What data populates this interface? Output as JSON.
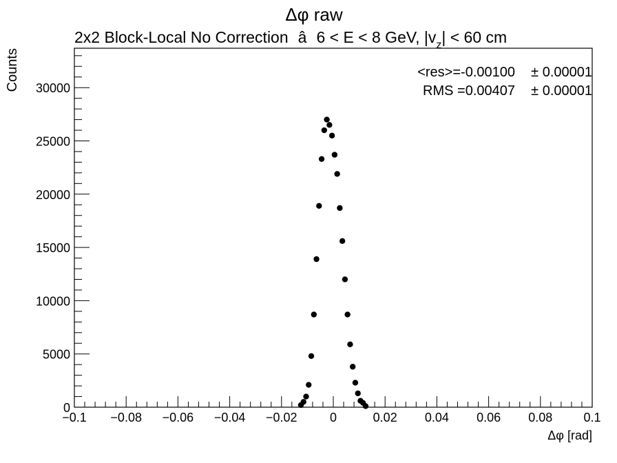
{
  "chart_data": {
    "type": "scatter",
    "title": "Δφ raw",
    "subtitle_parts": [
      "2x2 Block-Local No Correction",
      "â",
      "6 < E < 8 GeV, |v",
      "z",
      "| < 60 cm"
    ],
    "xlabel": "Δφ  [rad]",
    "ylabel": "Counts",
    "xlim": [
      -0.1,
      0.1
    ],
    "ylim": [
      0,
      33700
    ],
    "x_tick_labels": [
      "−0.1",
      "−0.08",
      "−0.06",
      "−0.04",
      "−0.02",
      "0",
      "0.02",
      "0.04",
      "0.06",
      "0.08",
      "0.1"
    ],
    "y_tick_labels": [
      "0",
      "5000",
      "10000",
      "15000",
      "20000",
      "25000",
      "30000"
    ],
    "grid": false,
    "stats": {
      "res_label": "<res>=-0.00100",
      "res_err": "± 0.00001",
      "rms_label": "RMS =0.00407",
      "rms_err": "± 0.00001"
    },
    "series": [
      {
        "x": [
          -0.0125,
          -0.0115,
          -0.0105,
          -0.0095,
          -0.0085,
          -0.0075,
          -0.0065,
          -0.0055,
          -0.0045,
          -0.0035,
          -0.0025,
          -0.0015,
          -0.0005,
          0.0005,
          0.0015,
          0.0025,
          0.0035,
          0.0045,
          0.0055,
          0.0065,
          0.0075,
          0.0085,
          0.0095,
          0.0105,
          0.0115,
          0.0125
        ],
        "y": [
          200,
          500,
          1000,
          2100,
          4800,
          8700,
          13900,
          18900,
          23300,
          26000,
          27000,
          26500,
          25500,
          23700,
          21900,
          18700,
          15600,
          12000,
          8700,
          5900,
          3800,
          2300,
          1300,
          600,
          400,
          100
        ]
      }
    ]
  },
  "colors": {
    "marker": "#000000",
    "frame": "#000000",
    "background": "#ffffff"
  }
}
